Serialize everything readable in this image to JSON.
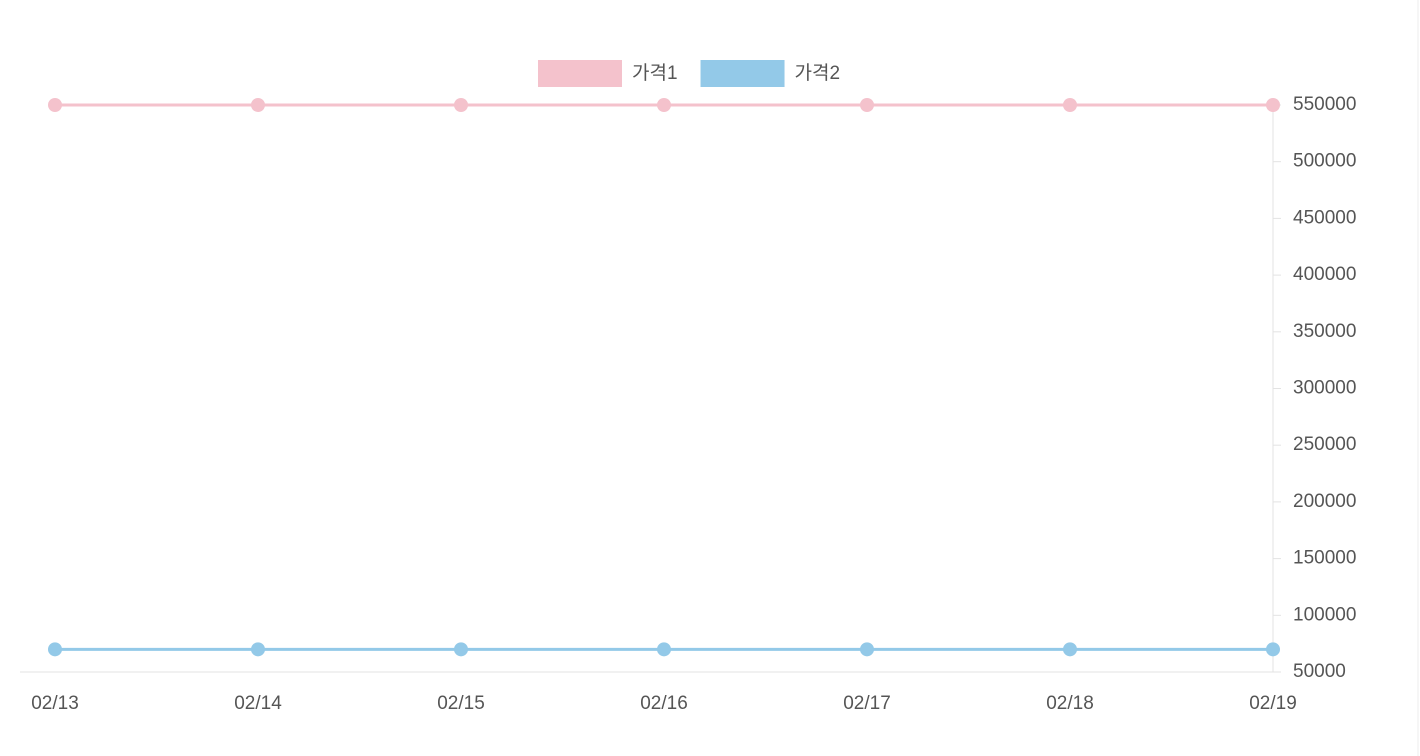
{
  "chart_data": {
    "type": "line",
    "x": [
      "02/13",
      "02/14",
      "02/15",
      "02/16",
      "02/17",
      "02/18",
      "02/19"
    ],
    "series": [
      {
        "name": "가격1",
        "color": "#f4c2cc",
        "values": [
          550000,
          550000,
          550000,
          550000,
          550000,
          550000,
          550000
        ]
      },
      {
        "name": "가격2",
        "color": "#93c9e8",
        "values": [
          70000,
          70000,
          70000,
          70000,
          70000,
          70000,
          70000
        ]
      }
    ],
    "ylim": [
      50000,
      550000
    ],
    "yticks": [
      50000,
      100000,
      150000,
      200000,
      250000,
      300000,
      350000,
      400000,
      450000,
      500000,
      550000
    ],
    "y_axis_side": "right",
    "legend": "top"
  }
}
